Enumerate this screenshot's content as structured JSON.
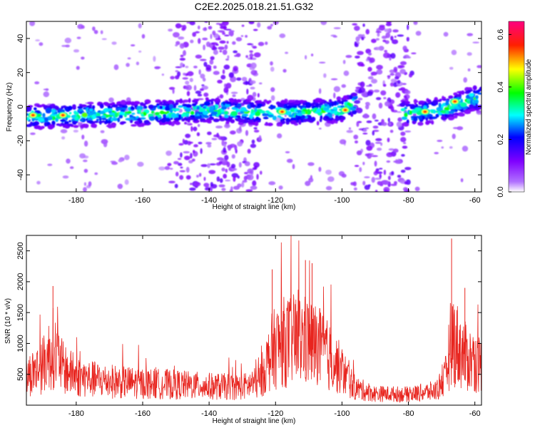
{
  "title": "C2E2.2025.018.21.51.G32",
  "chart_data": [
    {
      "type": "heatmap",
      "xlabel": "Height of straight line (km)",
      "ylabel": "Frequency (Hz)",
      "xlim": [
        -195,
        -58
      ],
      "ylim": [
        -50,
        50
      ],
      "xticks": [
        -180,
        -160,
        -140,
        -120,
        -100,
        -80,
        -60
      ],
      "yticks": [
        -40,
        -20,
        0,
        20,
        40
      ],
      "colorbar": {
        "label": "Normalized spectral amplitude",
        "range": [
          0,
          0.65
        ],
        "ticks": [
          0.0,
          0.2,
          0.4,
          0.6
        ],
        "colors": [
          "#ffffff",
          "#7f00ff",
          "#0000ff",
          "#00ffff",
          "#00ff00",
          "#ffff00",
          "#ff0000",
          "#ff0080"
        ]
      },
      "ridge": [
        {
          "x": -195,
          "y": -6
        },
        {
          "x": -180,
          "y": -5
        },
        {
          "x": -160,
          "y": -4
        },
        {
          "x": -140,
          "y": -2
        },
        {
          "x": -120,
          "y": -4
        },
        {
          "x": -100,
          "y": -2
        },
        {
          "x": -96,
          "y": 2
        },
        {
          "x": -80,
          "y": -4
        },
        {
          "x": -70,
          "y": -2
        },
        {
          "x": -60,
          "y": 5
        }
      ],
      "peaks": [
        {
          "x": -193,
          "y": -5
        },
        {
          "x": -184,
          "y": -5
        },
        {
          "x": -118,
          "y": -3
        },
        {
          "x": -99,
          "y": -2
        },
        {
          "x": -75,
          "y": -3
        },
        {
          "x": -66,
          "y": 3
        }
      ]
    },
    {
      "type": "line",
      "xlabel": "Height of straight line (km)",
      "ylabel": "SNR (10 * v/v)",
      "xlim": [
        -195,
        -58
      ],
      "ylim": [
        0,
        2750
      ],
      "xticks": [
        -180,
        -160,
        -140,
        -120,
        -100,
        -80,
        -60
      ],
      "yticks": [
        500,
        1000,
        1500,
        2000,
        2500
      ],
      "color": "#e8251f",
      "profile": [
        {
          "x": -195,
          "y": 500
        },
        {
          "x": -190,
          "y": 700
        },
        {
          "x": -187,
          "y": 1000
        },
        {
          "x": -184,
          "y": 650
        },
        {
          "x": -180,
          "y": 500
        },
        {
          "x": -175,
          "y": 450
        },
        {
          "x": -170,
          "y": 420
        },
        {
          "x": -160,
          "y": 380
        },
        {
          "x": -150,
          "y": 360
        },
        {
          "x": -140,
          "y": 330
        },
        {
          "x": -130,
          "y": 320
        },
        {
          "x": -125,
          "y": 400
        },
        {
          "x": -121,
          "y": 950
        },
        {
          "x": -118,
          "y": 1100
        },
        {
          "x": -112,
          "y": 1150
        },
        {
          "x": -108,
          "y": 1050
        },
        {
          "x": -103,
          "y": 800
        },
        {
          "x": -100,
          "y": 600
        },
        {
          "x": -96,
          "y": 300
        },
        {
          "x": -90,
          "y": 200
        },
        {
          "x": -80,
          "y": 190
        },
        {
          "x": -72,
          "y": 250
        },
        {
          "x": -69,
          "y": 450
        },
        {
          "x": -67,
          "y": 1200
        },
        {
          "x": -63,
          "y": 850
        },
        {
          "x": -58,
          "y": 700
        }
      ],
      "peaks": [
        {
          "x": -187,
          "y": 1930
        },
        {
          "x": -121,
          "y": 2200
        },
        {
          "x": -111,
          "y": 2350
        },
        {
          "x": -109,
          "y": 2300
        },
        {
          "x": -67,
          "y": 2700
        },
        {
          "x": -63,
          "y": 1900
        }
      ]
    }
  ]
}
